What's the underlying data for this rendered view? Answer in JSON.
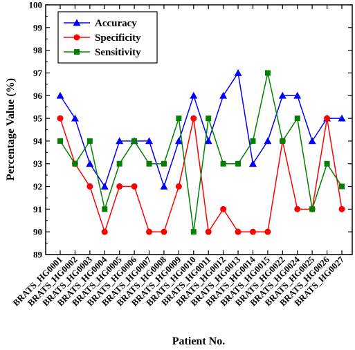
{
  "chart_data": {
    "type": "line",
    "xlabel": "Patient No.",
    "ylabel": "Percentage Value (%)",
    "ylim": [
      89,
      100
    ],
    "yticks": [
      89,
      90,
      91,
      92,
      93,
      94,
      95,
      96,
      97,
      98,
      99,
      100
    ],
    "categories": [
      "BRATS_HG0001",
      "BRATS_HG0002",
      "BRATS_HG0003",
      "BRATS_HG0004",
      "BRATS_HG0005",
      "BRATS_HG0006",
      "BRATS_HG0007",
      "BRATS_HG0008",
      "BRATS_HG0009",
      "BRATS_HG0010",
      "BRATS_HG0011",
      "BRATS_HG0012",
      "BRATS_HG0013",
      "BRATS_HG0014",
      "BRATS_HG0015",
      "BRATS_HG0022",
      "BRATS_HG0024",
      "BRATS_HG0025",
      "BRATS_HG0026",
      "BRATS_HG0027"
    ],
    "legend_position": "top-left",
    "grid": false,
    "series": [
      {
        "name": "Accuracy",
        "color": "#0000ff",
        "marker": "triangle",
        "values": [
          96,
          95,
          93,
          92,
          94,
          94,
          94,
          92,
          94,
          96,
          94,
          96,
          97,
          93,
          94,
          96,
          96,
          94,
          95,
          95
        ]
      },
      {
        "name": "Specificity",
        "color": "#ff0000",
        "marker": "circle",
        "values": [
          95,
          93,
          92,
          90,
          92,
          92,
          90,
          90,
          92,
          95,
          90,
          91,
          90,
          90,
          90,
          94,
          91,
          91,
          95,
          91
        ]
      },
      {
        "name": "Sensitivity",
        "color": "#008000",
        "marker": "square",
        "values": [
          94,
          93,
          94,
          91,
          93,
          94,
          93,
          93,
          95,
          90,
          95,
          93,
          93,
          94,
          97,
          94,
          95,
          91,
          93,
          92
        ]
      }
    ]
  }
}
